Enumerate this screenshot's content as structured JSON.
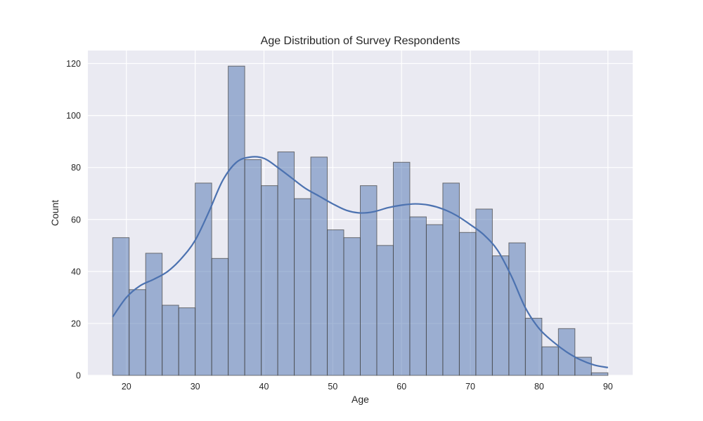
{
  "chart_data": {
    "type": "bar",
    "subtype": "histogram-with-kde",
    "title": "Age Distribution of Survey Respondents",
    "xlabel": "Age",
    "ylabel": "Count",
    "xlim": [
      14.4,
      93.6
    ],
    "ylim": [
      0,
      125
    ],
    "xticks": [
      20,
      30,
      40,
      50,
      60,
      70,
      80,
      90
    ],
    "yticks": [
      0,
      20,
      40,
      60,
      80,
      100,
      120
    ],
    "grid": true,
    "colors": {
      "background": "#eaeaf2",
      "grid": "#ffffff",
      "bar_fill": "#4c72b0",
      "bar_fill_opacity": 0.5,
      "bar_edge": "#4a4a4a",
      "kde_line": "#4c72b0",
      "text": "#262626"
    },
    "bins": [
      {
        "x0": 18.0,
        "x1": 20.4,
        "count": 53
      },
      {
        "x0": 20.4,
        "x1": 22.8,
        "count": 33
      },
      {
        "x0": 22.8,
        "x1": 25.2,
        "count": 47
      },
      {
        "x0": 25.2,
        "x1": 27.6,
        "count": 27
      },
      {
        "x0": 27.6,
        "x1": 30.0,
        "count": 26
      },
      {
        "x0": 30.0,
        "x1": 32.4,
        "count": 74
      },
      {
        "x0": 32.4,
        "x1": 34.8,
        "count": 45
      },
      {
        "x0": 34.8,
        "x1": 37.2,
        "count": 119
      },
      {
        "x0": 37.2,
        "x1": 39.6,
        "count": 83
      },
      {
        "x0": 39.6,
        "x1": 42.0,
        "count": 73
      },
      {
        "x0": 42.0,
        "x1": 44.4,
        "count": 86
      },
      {
        "x0": 44.4,
        "x1": 46.8,
        "count": 68
      },
      {
        "x0": 46.8,
        "x1": 49.2,
        "count": 84
      },
      {
        "x0": 49.2,
        "x1": 51.6,
        "count": 56
      },
      {
        "x0": 51.6,
        "x1": 54.0,
        "count": 53
      },
      {
        "x0": 54.0,
        "x1": 56.4,
        "count": 73
      },
      {
        "x0": 56.4,
        "x1": 58.8,
        "count": 50
      },
      {
        "x0": 58.8,
        "x1": 61.2,
        "count": 82
      },
      {
        "x0": 61.2,
        "x1": 63.6,
        "count": 61
      },
      {
        "x0": 63.6,
        "x1": 66.0,
        "count": 58
      },
      {
        "x0": 66.0,
        "x1": 68.4,
        "count": 74
      },
      {
        "x0": 68.4,
        "x1": 70.8,
        "count": 55
      },
      {
        "x0": 70.8,
        "x1": 73.2,
        "count": 64
      },
      {
        "x0": 73.2,
        "x1": 75.6,
        "count": 46
      },
      {
        "x0": 75.6,
        "x1": 78.0,
        "count": 51
      },
      {
        "x0": 78.0,
        "x1": 80.4,
        "count": 22
      },
      {
        "x0": 80.4,
        "x1": 82.8,
        "count": 11
      },
      {
        "x0": 82.8,
        "x1": 85.2,
        "count": 18
      },
      {
        "x0": 85.2,
        "x1": 87.6,
        "count": 7
      },
      {
        "x0": 87.6,
        "x1": 90.0,
        "count": 1
      }
    ],
    "kde": {
      "x": [
        18,
        20,
        22,
        24,
        26,
        28,
        30,
        32,
        34,
        36,
        38,
        40,
        42,
        44,
        46,
        48,
        50,
        52,
        54,
        56,
        58,
        60,
        62,
        64,
        66,
        68,
        70,
        72,
        74,
        76,
        78,
        80,
        82,
        84,
        86,
        88,
        90
      ],
      "y": [
        22.5,
        30,
        34.5,
        37,
        40,
        45,
        52,
        63,
        75,
        82,
        84,
        83.5,
        80,
        76,
        72,
        69,
        66,
        63.5,
        62.5,
        63,
        64.5,
        65.5,
        66,
        65.5,
        64,
        61.5,
        58,
        54,
        48,
        38,
        26,
        18,
        13,
        9,
        6,
        4,
        3
      ]
    }
  }
}
